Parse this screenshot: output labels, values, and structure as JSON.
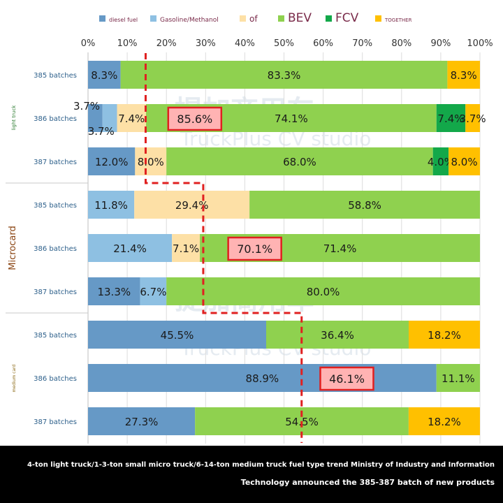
{
  "chart_data": {
    "type": "bar",
    "orientation": "horizontal",
    "stacked": true,
    "xlim": [
      0,
      100
    ],
    "x_ticks": [
      "0%",
      "10%",
      "20%",
      "30%",
      "40%",
      "50%",
      "60%",
      "70%",
      "80%",
      "90%",
      "100%"
    ],
    "legend_position": "top",
    "grid": "vertical",
    "legend": [
      {
        "name": "diesel fuel",
        "color": "#6699c6"
      },
      {
        "name": "Gasoline/Methanol",
        "color": "#8ec0e2"
      },
      {
        "name": "of",
        "color": "#fde0a6"
      },
      {
        "name": "BEV",
        "color": "#8fd14f"
      },
      {
        "name": "FCV",
        "color": "#13a84a"
      },
      {
        "name": "TOGETHER",
        "color": "#ffc000"
      }
    ],
    "groups": [
      {
        "label": "light truck",
        "rows": [
          {
            "label": "385 batches",
            "segments": [
              {
                "series": "diesel fuel",
                "value": 8.3,
                "label": "8.3%"
              },
              {
                "series": "BEV",
                "value": 83.3,
                "label": "83.3%"
              },
              {
                "series": "TOGETHER",
                "value": 8.3,
                "label": "8.3%"
              }
            ]
          },
          {
            "label": "386 batches",
            "segments": [
              {
                "series": "diesel fuel",
                "value": 3.7,
                "label": "3.7%"
              },
              {
                "series": "Gasoline/Methanol",
                "value": 3.7,
                "label": "3.7%"
              },
              {
                "series": "of",
                "value": 7.4,
                "label": "7.4%"
              },
              {
                "series": "BEV",
                "value": 74.1,
                "label": "74.1%"
              },
              {
                "series": "FCV",
                "value": 7.4,
                "label": "7.4%"
              },
              {
                "series": "TOGETHER",
                "value": 3.7,
                "label": "3.7%"
              }
            ]
          },
          {
            "label": "387 batches",
            "segments": [
              {
                "series": "diesel fuel",
                "value": 12.0,
                "label": "12.0%"
              },
              {
                "series": "of",
                "value": 8.0,
                "label": "8.0%"
              },
              {
                "series": "BEV",
                "value": 68.0,
                "label": "68.0%"
              },
              {
                "series": "FCV",
                "value": 4.0,
                "label": "4.0%"
              },
              {
                "series": "TOGETHER",
                "value": 8.0,
                "label": "8.0%"
              }
            ]
          }
        ]
      },
      {
        "label": "Microcard",
        "rows": [
          {
            "label": "385 batches",
            "segments": [
              {
                "series": "Gasoline/Methanol",
                "value": 11.8,
                "label": "11.8%"
              },
              {
                "series": "of",
                "value": 29.4,
                "label": "29.4%"
              },
              {
                "series": "BEV",
                "value": 58.8,
                "label": "58.8%"
              }
            ]
          },
          {
            "label": "386 batches",
            "segments": [
              {
                "series": "Gasoline/Methanol",
                "value": 21.4,
                "label": "21.4%"
              },
              {
                "series": "of",
                "value": 7.1,
                "label": "7.1%"
              },
              {
                "series": "BEV",
                "value": 71.4,
                "label": "71.4%"
              }
            ]
          },
          {
            "label": "387 batches",
            "segments": [
              {
                "series": "diesel fuel",
                "value": 13.3,
                "label": "13.3%"
              },
              {
                "series": "Gasoline/Methanol",
                "value": 6.7,
                "label": "6.7%"
              },
              {
                "series": "BEV",
                "value": 80.0,
                "label": "80.0%"
              }
            ]
          }
        ]
      },
      {
        "label": "medium card",
        "rows": [
          {
            "label": "385 batches",
            "segments": [
              {
                "series": "diesel fuel",
                "value": 45.5,
                "label": "45.5%"
              },
              {
                "series": "BEV",
                "value": 36.4,
                "label": "36.4%"
              },
              {
                "series": "TOGETHER",
                "value": 18.2,
                "label": "18.2%"
              }
            ]
          },
          {
            "label": "386 batches",
            "segments": [
              {
                "series": "diesel fuel",
                "value": 88.9,
                "label": "88.9%"
              },
              {
                "series": "BEV",
                "value": 11.1,
                "label": "11.1%"
              }
            ]
          },
          {
            "label": "387 batches",
            "segments": [
              {
                "series": "diesel fuel",
                "value": 27.3,
                "label": "27.3%"
              },
              {
                "series": "BEV",
                "value": 54.5,
                "label": "54.5%"
              },
              {
                "series": "TOGETHER",
                "value": 18.2,
                "label": "18.2%"
              }
            ]
          }
        ]
      }
    ],
    "trend_line": {
      "color": "#e02020",
      "points": [
        {
          "row": 0,
          "x": 14.7,
          "at": "top"
        },
        {
          "row": 2,
          "x": 14.7,
          "at": "bottom"
        },
        {
          "row": 3,
          "x": 29.4,
          "at": "top"
        },
        {
          "row": 5,
          "x": 29.4,
          "at": "bottom"
        },
        {
          "row": 6,
          "x": 54.5,
          "at": "top"
        },
        {
          "row": 8,
          "x": 54.5,
          "at": "bottom"
        }
      ]
    },
    "annotations": [
      {
        "label": "85.6%",
        "row": 1,
        "x": 21.0
      },
      {
        "label": "70.1%",
        "row": 4,
        "x": 36.3
      },
      {
        "label": "46.1%",
        "row": 7,
        "x": 59.8
      }
    ]
  },
  "watermark": {
    "cn": "提加商用车",
    "en": "TruckPlus CV studio"
  },
  "footer": {
    "line1": "4-ton light truck/1-3-ton small micro truck/6-14-ton medium truck fuel type trend Ministry of Industry and Information",
    "line2": "Technology announced the 385-387 batch of new products"
  }
}
